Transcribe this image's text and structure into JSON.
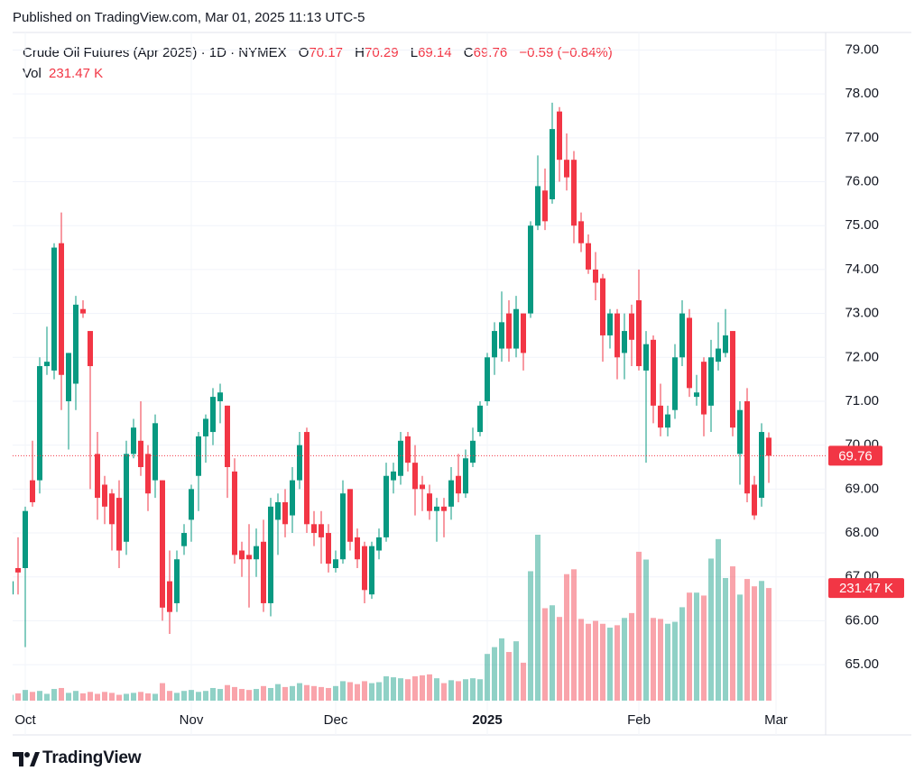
{
  "published": "Published on TradingView.com, Mar 01, 2025 11:13 UTC-5",
  "brand": "TradingView",
  "chart_data": {
    "type": "candlestick",
    "title": "Crude Oil Futures (Apr 2025) · 1D · NYMEX",
    "ohlc_letters": [
      "O",
      "H",
      "L",
      "C"
    ],
    "change": {
      "value": -0.59,
      "label": "−0.59"
    },
    "change_pct": {
      "value": -0.84,
      "label": "(−0.84%)"
    },
    "volume_title": "Vol",
    "last_volume_label": "231.47 K",
    "up_color": "#089981",
    "down_color": "#f23645",
    "volume_up_color": "rgba(8,153,129,0.45)",
    "volume_down_color": "rgba(242,54,69,0.45)",
    "grid": true,
    "ylim": [
      63.4,
      79.4
    ],
    "yticks": [
      {
        "value": 65,
        "label": "65.00"
      },
      {
        "value": 66,
        "label": "66.00"
      },
      {
        "value": 67,
        "label": "67.00"
      },
      {
        "value": 68,
        "label": "68.00"
      },
      {
        "value": 69,
        "label": "69.00"
      },
      {
        "value": 70,
        "label": "70.00"
      },
      {
        "value": 71,
        "label": "71.00"
      },
      {
        "value": 72,
        "label": "72.00"
      },
      {
        "value": 73,
        "label": "73.00"
      },
      {
        "value": 74,
        "label": "74.00"
      },
      {
        "value": 75,
        "label": "75.00"
      },
      {
        "value": 76,
        "label": "76.00"
      },
      {
        "value": 77,
        "label": "77.00"
      },
      {
        "value": 78,
        "label": "78.00"
      },
      {
        "value": 79,
        "label": "79.00"
      }
    ],
    "categories": [
      null,
      null,
      "Oct",
      null,
      null,
      null,
      null,
      null,
      null,
      null,
      null,
      null,
      null,
      null,
      null,
      null,
      null,
      null,
      null,
      null,
      null,
      null,
      null,
      null,
      null,
      "Nov",
      null,
      null,
      null,
      null,
      null,
      null,
      null,
      null,
      null,
      null,
      null,
      null,
      null,
      null,
      null,
      null,
      null,
      null,
      null,
      "Dec",
      null,
      null,
      null,
      null,
      null,
      null,
      null,
      null,
      null,
      null,
      null,
      null,
      null,
      null,
      null,
      null,
      null,
      null,
      null,
      null,
      "2025",
      null,
      null,
      null,
      null,
      null,
      null,
      null,
      null,
      null,
      null,
      null,
      null,
      null,
      null,
      null,
      null,
      null,
      null,
      null,
      null,
      "Feb",
      null,
      null,
      null,
      null,
      null,
      null,
      null,
      null,
      null,
      null,
      null,
      null,
      null,
      null,
      null,
      null,
      null,
      null,
      "Mar"
    ],
    "open": [
      66.6,
      67.2,
      67.2,
      69.2,
      69.2,
      71.8,
      71.7,
      74.6,
      71.0,
      71.4,
      73.1,
      72.6,
      69.8,
      69.1,
      68.9,
      68.8,
      67.8,
      69.8,
      70.1,
      69.8,
      69.2,
      69.2,
      66.9,
      66.4,
      67.7,
      68.3,
      69.3,
      70.2,
      70.3,
      71.0,
      70.9,
      69.4,
      67.6,
      67.5,
      67.4,
      67.8,
      66.4,
      68.3,
      68.7,
      68.4,
      69.2,
      70.3,
      68.2,
      68.2,
      68.0,
      67.2,
      67.4,
      69.0,
      67.9,
      67.7,
      66.6,
      67.6,
      67.9,
      69.2,
      69.3,
      70.2,
      69.6,
      69.1,
      68.9,
      68.5,
      68.6,
      68.6,
      69.3,
      68.9,
      69.6,
      70.3,
      71.0,
      72.0,
      72.2,
      73.0,
      72.2,
      73.0,
      73.0,
      75.0,
      75.8,
      75.6,
      77.6,
      76.5,
      76.5,
      75.1,
      74.6,
      74.0,
      73.8,
      72.5,
      73.0,
      72.1,
      73.0,
      73.3,
      71.7,
      72.4,
      70.9,
      70.4,
      70.8,
      72.0,
      72.9,
      71.1,
      71.9,
      70.9,
      71.9,
      72.1,
      72.6,
      69.8,
      71.0,
      69.1,
      68.8,
      70.17,
      null
    ],
    "high": [
      67.1,
      67.9,
      68.6,
      70.1,
      72.0,
      72.7,
      74.6,
      75.3,
      72.1,
      73.4,
      73.3,
      72.6,
      70.3,
      69.3,
      69.0,
      69.2,
      70.1,
      70.6,
      71.0,
      70.0,
      70.7,
      69.2,
      67.6,
      67.6,
      68.2,
      69.1,
      70.3,
      70.7,
      71.3,
      71.4,
      70.9,
      69.7,
      67.8,
      68.2,
      68.1,
      68.3,
      68.8,
      68.9,
      69.0,
      69.5,
      70.3,
      70.4,
      68.5,
      68.5,
      68.2,
      67.6,
      69.2,
      69.0,
      68.1,
      67.8,
      67.8,
      68.1,
      69.6,
      69.6,
      70.3,
      70.3,
      70.0,
      69.3,
      69.1,
      68.8,
      68.8,
      69.5,
      69.8,
      69.9,
      70.4,
      71.0,
      72.1,
      72.8,
      73.5,
      73.3,
      73.4,
      73.0,
      75.1,
      76.6,
      76.3,
      77.8,
      77.7,
      77.1,
      76.7,
      75.3,
      74.8,
      74.4,
      73.9,
      73.1,
      73.1,
      73.0,
      73.2,
      74.0,
      72.6,
      72.5,
      71.4,
      70.9,
      72.3,
      73.3,
      73.1,
      71.6,
      72.0,
      72.4,
      72.8,
      73.1,
      72.6,
      71.0,
      71.3,
      69.3,
      70.5,
      70.29,
      null
    ],
    "low": [
      66.4,
      66.6,
      65.4,
      68.6,
      68.9,
      71.6,
      71.5,
      70.8,
      69.9,
      70.8,
      72.9,
      69.0,
      68.3,
      68.2,
      67.6,
      67.2,
      67.5,
      69.7,
      69.3,
      68.5,
      68.8,
      66.0,
      65.7,
      66.2,
      67.5,
      67.8,
      68.5,
      69.6,
      70.0,
      70.5,
      68.8,
      67.3,
      67.0,
      66.3,
      67.0,
      66.2,
      66.1,
      67.5,
      67.9,
      68.0,
      69.0,
      68.0,
      67.7,
      67.3,
      67.1,
      67.1,
      67.3,
      67.6,
      67.2,
      66.4,
      66.5,
      67.4,
      67.8,
      68.9,
      69.1,
      69.4,
      68.4,
      68.5,
      68.3,
      67.8,
      67.9,
      68.3,
      68.7,
      68.8,
      69.5,
      70.2,
      70.9,
      71.6,
      71.9,
      71.9,
      72.0,
      71.7,
      72.9,
      74.9,
      74.9,
      75.5,
      76.0,
      75.8,
      74.6,
      74.4,
      73.9,
      73.3,
      71.9,
      72.2,
      71.5,
      71.5,
      71.8,
      71.7,
      69.6,
      70.5,
      70.2,
      70.2,
      70.6,
      71.8,
      71.1,
      70.9,
      70.2,
      70.3,
      71.7,
      72.0,
      70.2,
      69.1,
      68.7,
      68.3,
      68.6,
      69.14,
      null
    ],
    "close": [
      66.9,
      67.1,
      68.5,
      68.7,
      71.8,
      71.9,
      74.5,
      71.6,
      72.1,
      73.2,
      73.0,
      71.8,
      68.8,
      68.6,
      68.2,
      67.6,
      69.8,
      70.4,
      69.5,
      68.9,
      70.5,
      66.3,
      66.2,
      67.4,
      68.0,
      69.0,
      70.2,
      70.6,
      71.1,
      71.2,
      69.5,
      67.5,
      67.4,
      67.4,
      67.7,
      66.4,
      68.6,
      68.7,
      68.2,
      69.2,
      70.0,
      68.2,
      68.0,
      67.9,
      67.3,
      67.4,
      68.9,
      67.8,
      67.4,
      66.7,
      67.7,
      67.9,
      69.3,
      69.4,
      70.1,
      69.6,
      69.0,
      69.0,
      68.5,
      68.6,
      68.5,
      69.2,
      68.9,
      69.7,
      70.1,
      70.9,
      72.0,
      72.6,
      72.8,
      72.2,
      73.1,
      72.1,
      75.0,
      75.9,
      75.1,
      77.2,
      76.5,
      76.1,
      75.0,
      74.6,
      74.0,
      73.7,
      72.5,
      73.0,
      72.0,
      72.6,
      72.4,
      71.8,
      72.3,
      70.9,
      70.4,
      70.7,
      72.0,
      73.0,
      71.3,
      71.2,
      70.7,
      72.0,
      72.2,
      72.5,
      70.4,
      70.8,
      68.9,
      68.4,
      70.3,
      69.76,
      null
    ],
    "volume": [
      12,
      15,
      22,
      18,
      20,
      14,
      24,
      26,
      16,
      20,
      15,
      18,
      14,
      18,
      16,
      12,
      14,
      16,
      18,
      15,
      14,
      36,
      20,
      16,
      20,
      22,
      18,
      20,
      26,
      24,
      32,
      28,
      24,
      22,
      24,
      30,
      26,
      34,
      28,
      30,
      36,
      32,
      30,
      28,
      26,
      30,
      40,
      38,
      34,
      40,
      36,
      38,
      50,
      48,
      46,
      44,
      50,
      52,
      54,
      46,
      36,
      42,
      40,
      44,
      46,
      44,
      96,
      110,
      128,
      100,
      122,
      78,
      266,
      341,
      190,
      196,
      172,
      260,
      270,
      168,
      158,
      164,
      158,
      150,
      155,
      170,
      180,
      306,
      290,
      170,
      168,
      158,
      162,
      192,
      222,
      222,
      216,
      292,
      332,
      252,
      276,
      218,
      250,
      235,
      246,
      231.47,
      null
    ]
  }
}
